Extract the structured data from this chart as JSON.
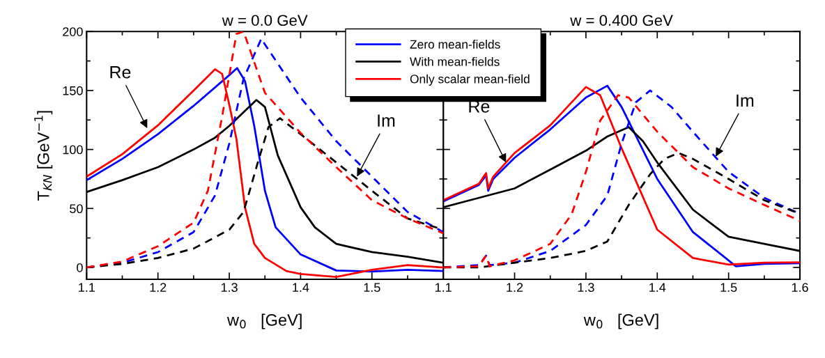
{
  "chart_data": [
    {
      "type": "line",
      "title": "w = 0.0 GeV",
      "xlabel": "w$_{0}$   [GeV]",
      "ylabel": "T$_{KN}$ [GeV$^{−1}$]",
      "xlim": [
        1.1,
        1.6
      ],
      "xticks": [
        1.1,
        {
          "value": 1.15,
          "label": null
        },
        1.2,
        {
          "value": 1.25,
          "label": null
        },
        1.3,
        {
          "value": 1.35,
          "label": null
        },
        1.4,
        {
          "value": 1.45,
          "label": null
        },
        1.5,
        {
          "value": 1.55,
          "label": null
        }
      ],
      "ylim": [
        -10,
        200
      ],
      "yticks": [
        0,
        {
          "value": 25,
          "label": null
        },
        50,
        {
          "value": 75,
          "label": null
        },
        100,
        {
          "value": 125,
          "label": null
        },
        150,
        {
          "value": 175,
          "label": null
        },
        200
      ],
      "grid": false,
      "legend": "top",
      "marker": "none",
      "annotations": [
        {
          "text": "Re",
          "x": 1.185,
          "y": 118
        },
        {
          "text": "Im",
          "x": 1.479,
          "y": 77
        }
      ],
      "series": [
        {
          "name": "Zero mean-fields",
          "color": "#0000ff",
          "line_style": "solid",
          "x": [
            1.1,
            1.15,
            1.2,
            1.25,
            1.3,
            1.311,
            1.322,
            1.335,
            1.35,
            1.365,
            1.4,
            1.45,
            1.5,
            1.55,
            1.6
          ],
          "values": [
            74,
            92,
            113,
            137,
            163,
            169,
            158,
            120,
            65,
            34,
            11,
            -2.6,
            -3.5,
            -2,
            -3
          ]
        },
        {
          "name": "With mean-fields",
          "color": "#000000",
          "line_style": "solid",
          "x": [
            1.1,
            1.15,
            1.2,
            1.25,
            1.28,
            1.3,
            1.338,
            1.35,
            1.368,
            1.4,
            1.42,
            1.45,
            1.5,
            1.55,
            1.6
          ],
          "values": [
            64,
            74,
            85,
            100,
            110,
            120,
            142,
            136,
            95,
            51,
            34,
            20,
            13,
            9,
            4
          ]
        },
        {
          "name": "Only scalar mean-field",
          "color": "#ff0000",
          "line_style": "solid",
          "x": [
            1.1,
            1.15,
            1.2,
            1.25,
            1.28,
            1.29,
            1.3,
            1.31,
            1.322,
            1.335,
            1.35,
            1.38,
            1.4,
            1.45,
            1.5,
            1.55,
            1.6
          ],
          "values": [
            77,
            96,
            120.5,
            150,
            168,
            164,
            138,
            109,
            51,
            20,
            8,
            -3,
            -5.5,
            -8,
            -2,
            2,
            0
          ]
        },
        {
          "color": "#0000ff",
          "line_style": "dashed",
          "x": [
            1.1,
            1.15,
            1.2,
            1.25,
            1.28,
            1.3,
            1.32,
            1.345,
            1.35,
            1.4,
            1.45,
            1.5,
            1.55,
            1.6
          ],
          "values": [
            0,
            4,
            13,
            30,
            61,
            105,
            160,
            194,
            189,
            144,
            107,
            77,
            47,
            30
          ]
        },
        {
          "color": "#000000",
          "line_style": "dashed",
          "x": [
            1.1,
            1.15,
            1.2,
            1.25,
            1.3,
            1.32,
            1.34,
            1.355,
            1.371,
            1.4,
            1.45,
            1.5,
            1.55,
            1.6
          ],
          "values": [
            0,
            3,
            8,
            16,
            32,
            47,
            89,
            119,
            126.5,
            113,
            89,
            65,
            41.5,
            32
          ]
        },
        {
          "color": "#ff0000",
          "line_style": "dashed",
          "x": [
            1.1,
            1.15,
            1.2,
            1.25,
            1.27,
            1.29,
            1.31,
            1.32,
            1.335,
            1.35,
            1.4,
            1.45,
            1.5,
            1.55,
            1.6
          ],
          "values": [
            0,
            5,
            18,
            38,
            65,
            128,
            198,
            200,
            174,
            148,
            114,
            85,
            57,
            41.5,
            29
          ]
        }
      ]
    },
    {
      "type": "line",
      "title": "w = 0.400 GeV",
      "xlabel": "w$_{0}$   [GeV]",
      "xlim": [
        1.1,
        1.6
      ],
      "xticks": [
        1.1,
        {
          "value": 1.15,
          "label": null
        },
        1.2,
        {
          "value": 1.25,
          "label": null
        },
        1.3,
        {
          "value": 1.35,
          "label": null
        },
        1.4,
        {
          "value": 1.45,
          "label": null
        },
        1.5,
        {
          "value": 1.55,
          "label": null
        },
        1.6
      ],
      "ylim": [
        -10,
        200
      ],
      "yticks": [
        0,
        {
          "value": 25,
          "label": null
        },
        50,
        {
          "value": 75,
          "label": null
        },
        100,
        {
          "value": 125,
          "label": null
        },
        150,
        {
          "value": 175,
          "label": null
        },
        200
      ],
      "tick_labels": "x",
      "grid": false,
      "marker": "none",
      "annotations": [
        {
          "text": "Re",
          "x": 1.188,
          "y": 89
        },
        {
          "text": "Im",
          "x": 1.482,
          "y": 94
        }
      ],
      "series": [
        {
          "color": "#0000ff",
          "line_style": "solid",
          "x": [
            1.1,
            1.15,
            1.16,
            1.163,
            1.17,
            1.2,
            1.25,
            1.3,
            1.33,
            1.35,
            1.4,
            1.45,
            1.5,
            1.51,
            1.55,
            1.6
          ],
          "values": [
            56,
            70,
            78,
            65,
            75,
            93,
            117,
            144,
            154,
            136,
            75,
            30,
            6,
            1,
            3,
            3.6
          ]
        },
        {
          "color": "#000000",
          "line_style": "solid",
          "x": [
            1.1,
            1.2,
            1.25,
            1.3,
            1.33,
            1.36,
            1.38,
            1.4,
            1.45,
            1.5,
            1.55,
            1.6
          ],
          "values": [
            51,
            67,
            83,
            99,
            111,
            119,
            107,
            89,
            49,
            26,
            20,
            14
          ]
        },
        {
          "color": "#ff0000",
          "line_style": "solid",
          "x": [
            1.1,
            1.15,
            1.16,
            1.163,
            1.17,
            1.2,
            1.25,
            1.3,
            1.32,
            1.35,
            1.4,
            1.45,
            1.5,
            1.55,
            1.6
          ],
          "values": [
            57,
            71,
            80,
            67,
            77,
            97,
            120.5,
            153,
            146,
            101,
            32,
            8,
            2.4,
            4,
            4.3
          ]
        },
        {
          "color": "#0000ff",
          "line_style": "dashed",
          "x": [
            1.1,
            1.15,
            1.16,
            1.165,
            1.2,
            1.25,
            1.3,
            1.33,
            1.35,
            1.37,
            1.39,
            1.42,
            1.45,
            1.5,
            1.55,
            1.6
          ],
          "values": [
            0,
            2,
            10,
            2,
            4,
            14,
            36,
            61,
            105,
            140,
            150,
            136,
            115,
            81,
            59,
            45.5
          ]
        },
        {
          "color": "#000000",
          "line_style": "dashed",
          "x": [
            1.1,
            1.15,
            1.2,
            1.25,
            1.3,
            1.33,
            1.36,
            1.39,
            1.41,
            1.43,
            1.45,
            1.5,
            1.55,
            1.6
          ],
          "values": [
            0,
            0,
            4,
            8,
            14,
            22,
            53,
            79,
            92,
            97,
            92,
            75,
            57,
            45.5
          ]
        },
        {
          "color": "#ff0000",
          "line_style": "dashed",
          "x": [
            1.1,
            1.15,
            1.16,
            1.165,
            1.2,
            1.25,
            1.28,
            1.3,
            1.32,
            1.345,
            1.36,
            1.4,
            1.45,
            1.5,
            1.55,
            1.6
          ],
          "values": [
            0,
            1,
            10,
            1,
            6,
            20,
            45,
            81,
            124.5,
            146,
            144,
            115,
            85,
            67,
            53,
            39.5
          ]
        }
      ]
    }
  ]
}
